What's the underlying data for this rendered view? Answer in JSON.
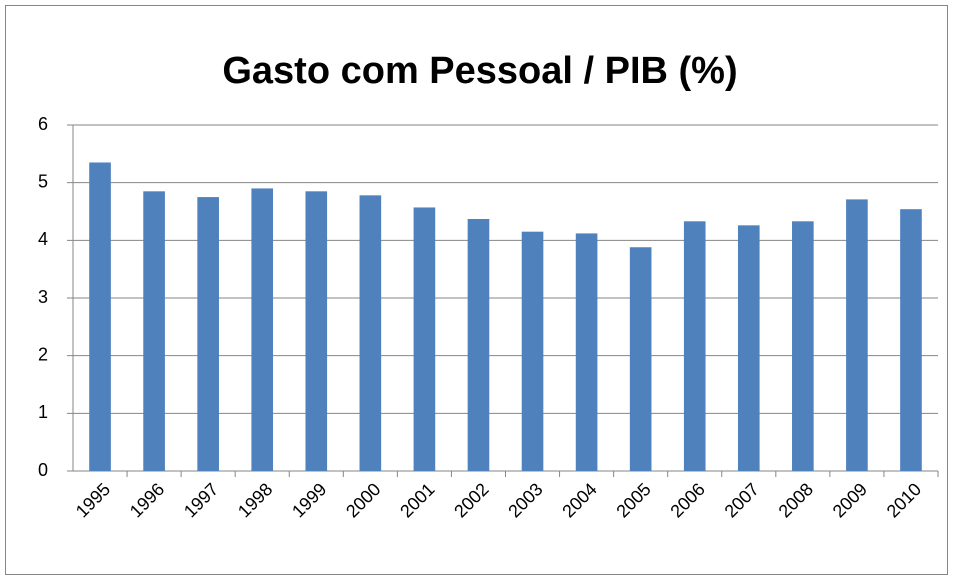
{
  "chart_data": {
    "type": "bar",
    "title": "Gasto com Pessoal / PIB (%)",
    "categories": [
      "1995",
      "1996",
      "1997",
      "1998",
      "1999",
      "2000",
      "2001",
      "2002",
      "2003",
      "2004",
      "2005",
      "2006",
      "2007",
      "2008",
      "2009",
      "2010"
    ],
    "values": [
      5.35,
      4.85,
      4.75,
      4.9,
      4.85,
      4.78,
      4.57,
      4.37,
      4.15,
      4.12,
      3.88,
      4.33,
      4.26,
      4.33,
      4.71,
      4.54
    ],
    "color": "#4f81bd",
    "ylim": [
      0,
      6
    ],
    "yticks": [
      0,
      1,
      2,
      3,
      4,
      5,
      6
    ],
    "grid": true
  }
}
